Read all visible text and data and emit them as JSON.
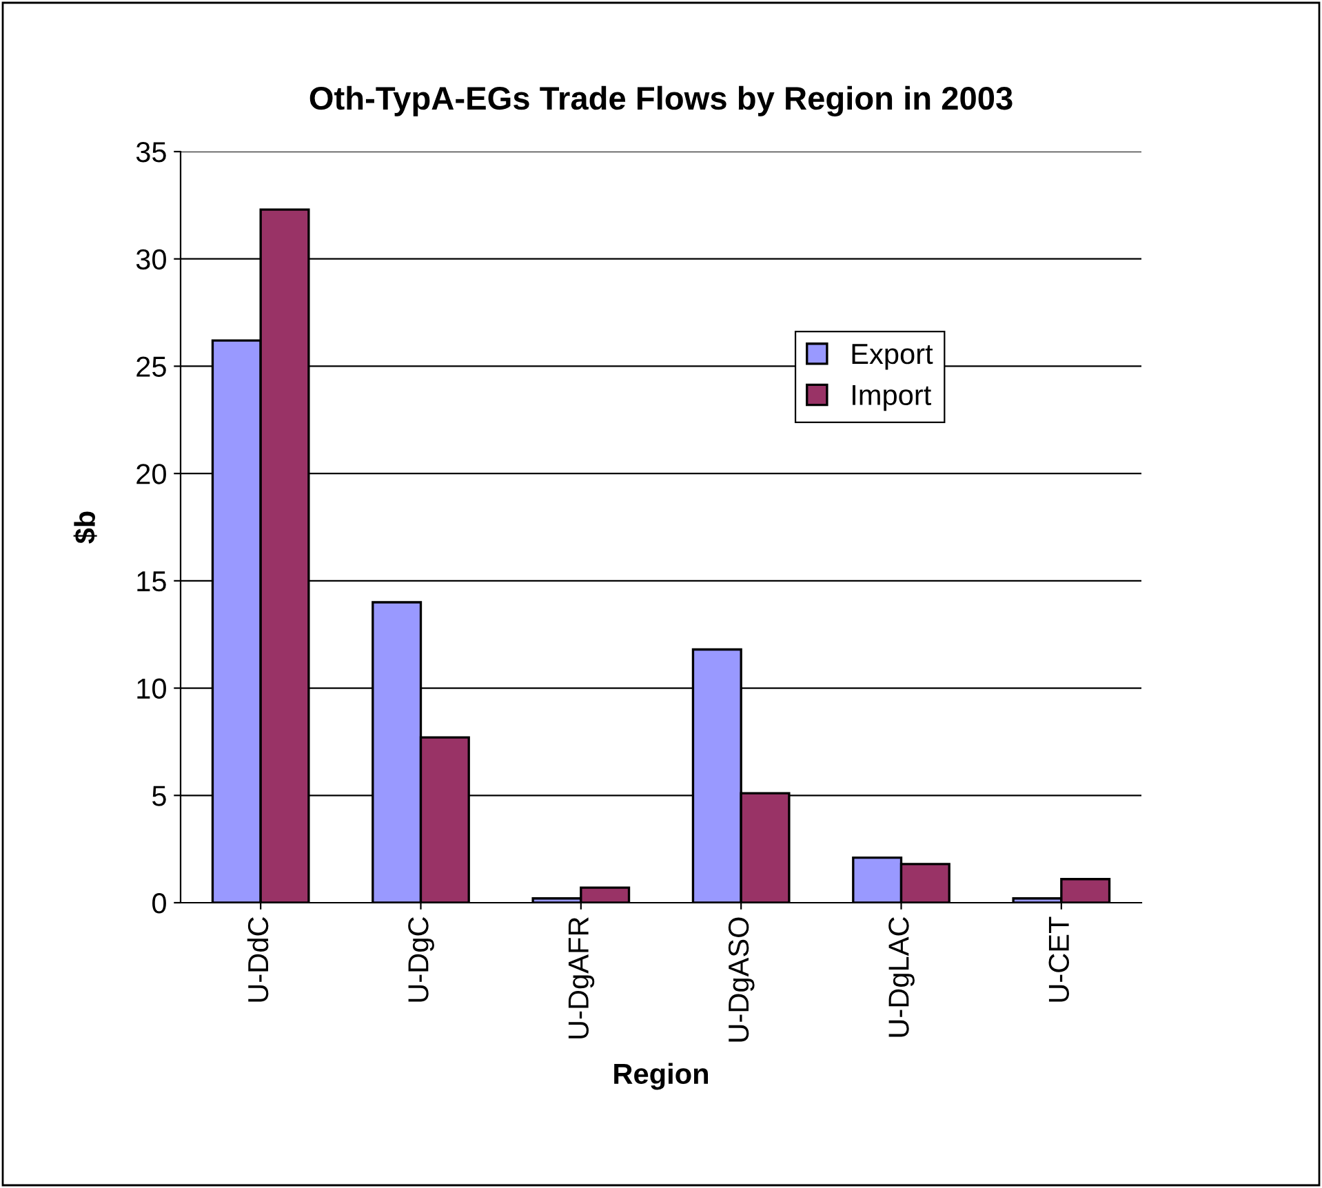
{
  "chart_data": {
    "type": "bar",
    "title": "Oth-TypA-EGs Trade Flows by Region in 2003",
    "xlabel": "Region",
    "ylabel": "$b",
    "categories": [
      "U-DdC",
      "U-DgC",
      "U-DgAFR",
      "U-DgASO",
      "U-DgLAC",
      "U-CET"
    ],
    "series": [
      {
        "name": "Export",
        "color": "#9999ff",
        "values": [
          26.2,
          14.0,
          0.2,
          11.8,
          2.1,
          0.2
        ]
      },
      {
        "name": "Import",
        "color": "#993366",
        "values": [
          32.3,
          7.7,
          0.7,
          5.1,
          1.8,
          1.1
        ]
      }
    ],
    "ylim": [
      0,
      35
    ],
    "yticks": [
      0,
      5,
      10,
      15,
      20,
      25,
      30,
      35
    ],
    "grid": "y",
    "legend": "right"
  }
}
